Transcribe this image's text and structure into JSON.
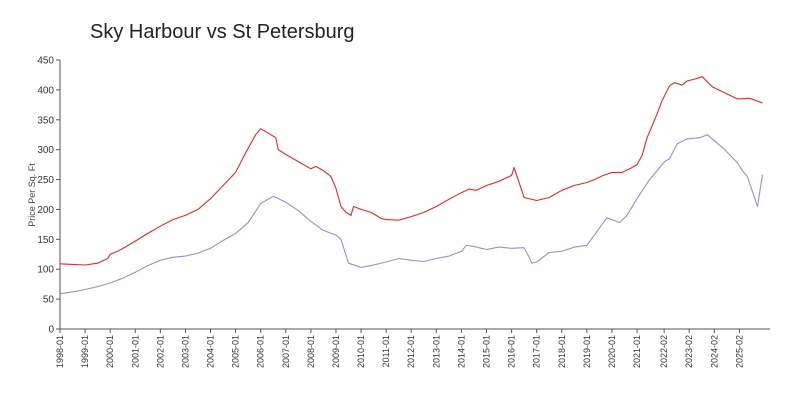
{
  "chart_data": {
    "type": "line",
    "title": "Sky Harbour vs St Petersburg",
    "xlabel": "",
    "ylabel": "Price Per Sq. Ft",
    "ylim": [
      0,
      450
    ],
    "yticks": [
      0,
      50,
      100,
      150,
      200,
      250,
      300,
      350,
      400,
      450
    ],
    "xlim": [
      1998.0,
      2026.3
    ],
    "xtick_labels": [
      "1998-01",
      "1999-01",
      "2000-01",
      "2001-01",
      "2002-01",
      "2003-01",
      "2004-01",
      "2005-01",
      "2006-01",
      "2007-01",
      "2008-01",
      "2009-01",
      "2010-01",
      "2011-01",
      "2012-01",
      "2013-01",
      "2014-01",
      "2015-01",
      "2016-01",
      "2017-01",
      "2018-01",
      "2019-01",
      "2020-01",
      "2021-01",
      "2022-02",
      "2023-02",
      "2024-02",
      "2025-02"
    ],
    "xtick_values": [
      1998.0,
      1999.0,
      2000.0,
      2001.0,
      2002.0,
      2003.0,
      2004.0,
      2005.0,
      2006.0,
      2007.0,
      2008.0,
      2009.0,
      2010.0,
      2011.0,
      2012.0,
      2013.0,
      2014.0,
      2015.0,
      2016.0,
      2017.0,
      2018.0,
      2019.0,
      2020.0,
      2021.0,
      2022.08,
      2023.08,
      2024.08,
      2025.08
    ],
    "grid": false,
    "legend": "none",
    "series": [
      {
        "color": "#e8252a",
        "x": [
          1998.0,
          1998.5,
          1999.0,
          1999.5,
          1999.9,
          2000.0,
          2000.3,
          2000.6,
          2001.0,
          2001.5,
          2002.0,
          2002.5,
          2003.0,
          2003.5,
          2004.0,
          2004.5,
          2005.0,
          2005.4,
          2005.8,
          2006.0,
          2006.2,
          2006.6,
          2006.7,
          2007.0,
          2007.5,
          2008.0,
          2008.2,
          2008.5,
          2008.8,
          2009.0,
          2009.2,
          2009.4,
          2009.6,
          2009.7,
          2010.0,
          2010.4,
          2010.8,
          2011.0,
          2011.5,
          2012.0,
          2012.5,
          2013.0,
          2013.5,
          2014.0,
          2014.3,
          2014.6,
          2015.0,
          2015.5,
          2016.0,
          2016.1,
          2016.5,
          2017.0,
          2017.5,
          2018.0,
          2018.5,
          2019.0,
          2019.3,
          2019.6,
          2020.0,
          2020.4,
          2020.8,
          2021.0,
          2021.2,
          2021.4,
          2021.6,
          2021.8,
          2022.0,
          2022.3,
          2022.5,
          2022.8,
          2023.0,
          2023.3,
          2023.6,
          2024.0,
          2024.5,
          2025.0,
          2025.5,
          2026.0
        ],
        "y": [
          109,
          108,
          107,
          110,
          118,
          125,
          130,
          137,
          147,
          160,
          172,
          183,
          190,
          200,
          218,
          240,
          262,
          295,
          325,
          335,
          330,
          320,
          300,
          292,
          280,
          268,
          272,
          265,
          255,
          235,
          205,
          195,
          190,
          205,
          200,
          195,
          185,
          183,
          182,
          188,
          195,
          205,
          217,
          228,
          234,
          232,
          240,
          247,
          257,
          270,
          220,
          215,
          220,
          232,
          240,
          245,
          250,
          256,
          262,
          262,
          270,
          275,
          290,
          320,
          340,
          360,
          382,
          407,
          412,
          408,
          415,
          418,
          422,
          405,
          395,
          385,
          386,
          378
        ]
      },
      {
        "color": "#8f8fe8",
        "x": [
          1998.0,
          1998.5,
          1999.0,
          1999.5,
          2000.0,
          2000.5,
          2001.0,
          2001.5,
          2002.0,
          2002.5,
          2003.0,
          2003.5,
          2004.0,
          2004.5,
          2005.0,
          2005.5,
          2006.0,
          2006.5,
          2007.0,
          2007.5,
          2008.0,
          2008.5,
          2009.0,
          2009.2,
          2009.5,
          2010.0,
          2010.5,
          2011.0,
          2011.5,
          2012.0,
          2012.5,
          2013.0,
          2013.5,
          2014.0,
          2014.2,
          2014.5,
          2014.8,
          2015.0,
          2015.5,
          2016.0,
          2016.5,
          2016.7,
          2016.8,
          2017.0,
          2017.5,
          2018.0,
          2018.5,
          2019.0,
          2019.4,
          2019.8,
          2020.0,
          2020.3,
          2020.6,
          2021.0,
          2021.5,
          2021.8,
          2022.0,
          2022.1,
          2022.3,
          2022.6,
          2023.0,
          2023.5,
          2023.8,
          2024.0,
          2024.5,
          2025.0,
          2025.2,
          2025.4,
          2025.8,
          2026.0
        ],
        "y": [
          59,
          62,
          66,
          71,
          77,
          85,
          95,
          106,
          115,
          120,
          122,
          127,
          135,
          148,
          160,
          178,
          210,
          222,
          212,
          198,
          180,
          165,
          157,
          150,
          110,
          103,
          107,
          112,
          118,
          115,
          113,
          118,
          122,
          130,
          140,
          138,
          135,
          133,
          137,
          135,
          136,
          120,
          110,
          112,
          128,
          130,
          137,
          140,
          163,
          186,
          183,
          178,
          190,
          218,
          250,
          265,
          275,
          280,
          285,
          310,
          318,
          320,
          325,
          318,
          300,
          278,
          265,
          255,
          205,
          258
        ]
      }
    ]
  }
}
